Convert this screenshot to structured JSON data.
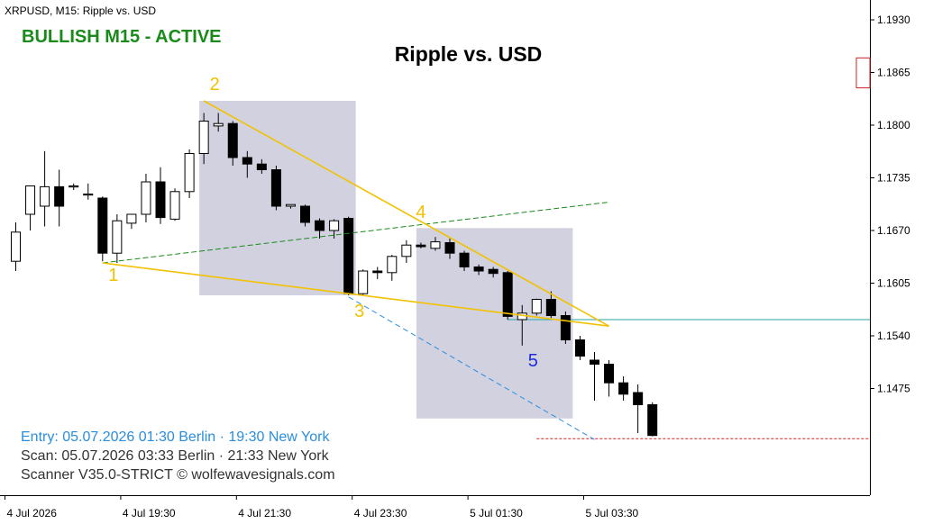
{
  "header": {
    "symbol_timeframe": "XRPUSD, M15:  Ripple vs. USD",
    "status": "BULLISH M15 - ACTIVE",
    "title": "Ripple vs. USD"
  },
  "footer": {
    "entry": "Entry: 05.07.2026  01:30 Berlin · 19:30 New York",
    "scan": "Scan:  05.07.2026  03:33 Berlin · 21:33 New York",
    "scanner": "Scanner V35.0-STRICT   © wolfewavesignals.com"
  },
  "colors": {
    "status": "#1a8a1a",
    "wave_lines": "#f2c200",
    "wave_labels": "#f2c200",
    "point5_label": "#1a2ee0",
    "zone": "#c9c9db",
    "trend_line": "#1a8a1a",
    "projection_line": "#2a8ee0",
    "entry_text": "#2a8ee0",
    "target_line": "#2aa6a6",
    "stop_line": "#cc2222",
    "bull_candle": "#ffffff",
    "bear_candle": "#000000"
  },
  "chart_data": {
    "type": "candlestick",
    "symbol": "XRPUSD",
    "timeframe": "M15",
    "y_axis": {
      "ticks": [
        1.193,
        1.1865,
        1.18,
        1.1735,
        1.167,
        1.1605,
        1.154,
        1.1475
      ],
      "tick_labels": [
        "1.1930",
        "1.1865",
        "1.1800",
        "1.1735",
        "1.1670",
        "1.1605",
        "1.1540",
        "1.1475"
      ],
      "range": [
        1.1405,
        1.1955
      ]
    },
    "x_axis": {
      "tick_labels": [
        "4 Jul 2026",
        "4 Jul 19:30",
        "4 Jul 21:30",
        "4 Jul 23:30",
        "5 Jul 01:30",
        "5 Jul 03:30"
      ],
      "tick_bars": [
        0,
        8,
        16,
        24,
        32,
        40
      ]
    },
    "candles": [
      {
        "o": 1.1632,
        "h": 1.168,
        "l": 1.162,
        "c": 1.1668
      },
      {
        "o": 1.169,
        "h": 1.1725,
        "l": 1.167,
        "c": 1.1725
      },
      {
        "o": 1.17,
        "h": 1.1768,
        "l": 1.1675,
        "c": 1.1724
      },
      {
        "o": 1.1724,
        "h": 1.1745,
        "l": 1.1675,
        "c": 1.17
      },
      {
        "o": 1.1725,
        "h": 1.1728,
        "l": 1.172,
        "c": 1.1725
      },
      {
        "o": 1.1715,
        "h": 1.1728,
        "l": 1.1708,
        "c": 1.1715
      },
      {
        "o": 1.171,
        "h": 1.1712,
        "l": 1.1632,
        "c": 1.1642
      },
      {
        "o": 1.1642,
        "h": 1.169,
        "l": 1.163,
        "c": 1.1682
      },
      {
        "o": 1.1679,
        "h": 1.169,
        "l": 1.1672,
        "c": 1.169
      },
      {
        "o": 1.169,
        "h": 1.174,
        "l": 1.168,
        "c": 1.173
      },
      {
        "o": 1.173,
        "h": 1.1748,
        "l": 1.1678,
        "c": 1.1686
      },
      {
        "o": 1.1684,
        "h": 1.1722,
        "l": 1.1682,
        "c": 1.1718
      },
      {
        "o": 1.1718,
        "h": 1.177,
        "l": 1.171,
        "c": 1.1765
      },
      {
        "o": 1.1765,
        "h": 1.1815,
        "l": 1.1752,
        "c": 1.1805
      },
      {
        "o": 1.1799,
        "h": 1.1815,
        "l": 1.1792,
        "c": 1.1802
      },
      {
        "o": 1.1802,
        "h": 1.1805,
        "l": 1.175,
        "c": 1.176
      },
      {
        "o": 1.176,
        "h": 1.1768,
        "l": 1.1735,
        "c": 1.1752
      },
      {
        "o": 1.1752,
        "h": 1.1758,
        "l": 1.174,
        "c": 1.1745
      },
      {
        "o": 1.1745,
        "h": 1.175,
        "l": 1.1695,
        "c": 1.17
      },
      {
        "o": 1.17,
        "h": 1.1702,
        "l": 1.1697,
        "c": 1.1702
      },
      {
        "o": 1.17,
        "h": 1.1702,
        "l": 1.1675,
        "c": 1.168
      },
      {
        "o": 1.1682,
        "h": 1.1685,
        "l": 1.166,
        "c": 1.167
      },
      {
        "o": 1.167,
        "h": 1.1684,
        "l": 1.166,
        "c": 1.1682
      },
      {
        "o": 1.1685,
        "h": 1.1687,
        "l": 1.159,
        "c": 1.1592
      },
      {
        "o": 1.1592,
        "h": 1.1622,
        "l": 1.159,
        "c": 1.162
      },
      {
        "o": 1.162,
        "h": 1.1625,
        "l": 1.161,
        "c": 1.1618
      },
      {
        "o": 1.1618,
        "h": 1.164,
        "l": 1.1608,
        "c": 1.1638
      },
      {
        "o": 1.1638,
        "h": 1.1658,
        "l": 1.163,
        "c": 1.1652
      },
      {
        "o": 1.1652,
        "h": 1.1655,
        "l": 1.1648,
        "c": 1.165
      },
      {
        "o": 1.1648,
        "h": 1.1662,
        "l": 1.1645,
        "c": 1.1656
      },
      {
        "o": 1.1655,
        "h": 1.166,
        "l": 1.1635,
        "c": 1.1642
      },
      {
        "o": 1.1642,
        "h": 1.1645,
        "l": 1.162,
        "c": 1.1625
      },
      {
        "o": 1.1625,
        "h": 1.1628,
        "l": 1.1615,
        "c": 1.162
      },
      {
        "o": 1.1622,
        "h": 1.1625,
        "l": 1.1612,
        "c": 1.1617
      },
      {
        "o": 1.1618,
        "h": 1.162,
        "l": 1.156,
        "c": 1.1564
      },
      {
        "o": 1.156,
        "h": 1.1578,
        "l": 1.1528,
        "c": 1.1568
      },
      {
        "o": 1.1568,
        "h": 1.1586,
        "l": 1.1565,
        "c": 1.1585
      },
      {
        "o": 1.1585,
        "h": 1.1595,
        "l": 1.1562,
        "c": 1.1565
      },
      {
        "o": 1.1565,
        "h": 1.157,
        "l": 1.153,
        "c": 1.1535
      },
      {
        "o": 1.1535,
        "h": 1.154,
        "l": 1.151,
        "c": 1.1515
      },
      {
        "o": 1.151,
        "h": 1.152,
        "l": 1.146,
        "c": 1.1505
      },
      {
        "o": 1.1505,
        "h": 1.151,
        "l": 1.1465,
        "c": 1.1482
      },
      {
        "o": 1.1482,
        "h": 1.149,
        "l": 1.146,
        "c": 1.1468
      },
      {
        "o": 1.147,
        "h": 1.148,
        "l": 1.142,
        "c": 1.1455
      },
      {
        "o": 1.1455,
        "h": 1.1458,
        "l": 1.1416,
        "c": 1.1417
      }
    ],
    "wolfe_points": [
      {
        "label": "1",
        "bar": 6,
        "price": 1.163
      },
      {
        "label": "2",
        "bar": 13,
        "price": 1.183
      },
      {
        "label": "3",
        "bar": 23,
        "price": 1.1588
      },
      {
        "label": "4",
        "bar": 28,
        "price": 1.1672
      },
      {
        "label": "5",
        "bar": 35,
        "price": 1.156
      }
    ],
    "zones": [
      {
        "from_bar": 13,
        "to_bar": 23,
        "top": 1.183,
        "bottom": 1.159
      },
      {
        "from_bar": 28,
        "to_bar": 38,
        "top": 1.1673,
        "bottom": 1.1438
      }
    ],
    "lines": [
      {
        "name": "1-4",
        "from_bar": 6,
        "from_price": 1.163,
        "to_bar": 41,
        "to_price": 1.1705
      },
      {
        "name": "2-4",
        "from_bar": 13,
        "from_price": 1.183,
        "to_bar": 41,
        "to_price": 1.1552
      },
      {
        "name": "1-3",
        "from_bar": 6,
        "from_price": 1.163,
        "to_bar": 41,
        "to_price": 1.1552
      },
      {
        "name": "3 projection",
        "from_bar": 23,
        "from_price": 1.1588,
        "to_bar": 40,
        "to_price": 1.1412
      }
    ],
    "target_price": 1.156,
    "stop_price": 1.1413,
    "stop_from_bar": 36
  }
}
